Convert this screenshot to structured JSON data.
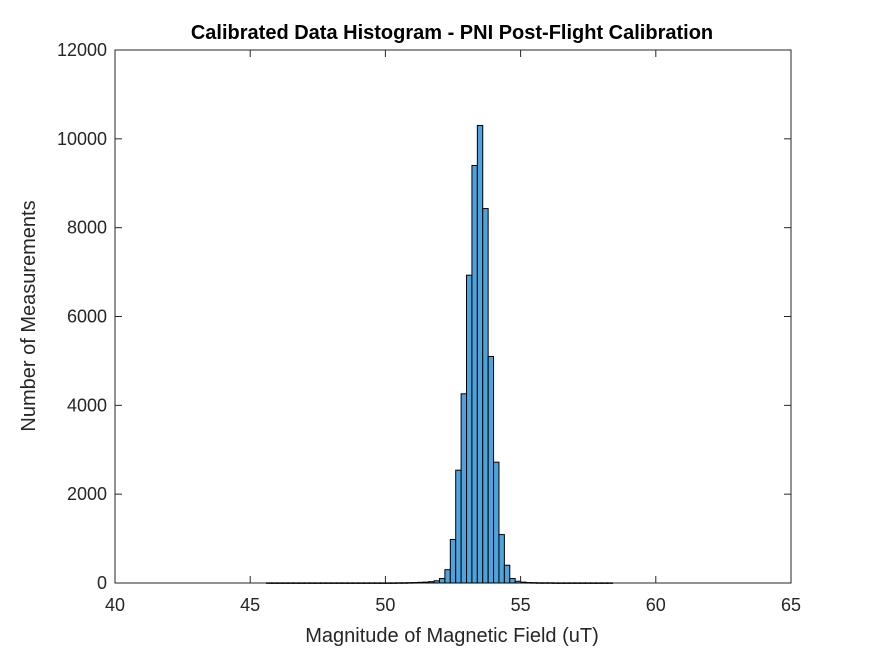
{
  "chart_data": {
    "type": "bar",
    "title": "Calibrated Data Histogram - PNI Post-Flight Calibration",
    "xlabel": "Magnitude of Magnetic Field (uT)",
    "ylabel": "Number of Measurements",
    "xlim": [
      40,
      65
    ],
    "ylim": [
      0,
      12000
    ],
    "xticks": [
      "40",
      "45",
      "50",
      "55",
      "60",
      "65"
    ],
    "yticks": [
      "0",
      "2000",
      "4000",
      "6000",
      "8000",
      "10000",
      "12000"
    ],
    "grid": false,
    "legend": "none",
    "bar_color": "#4DA3DB",
    "bin_width": 0.2,
    "bins": [
      {
        "x": 45.6,
        "y": 3
      },
      {
        "x": 45.8,
        "y": 3
      },
      {
        "x": 46.0,
        "y": 3
      },
      {
        "x": 46.2,
        "y": 3
      },
      {
        "x": 46.4,
        "y": 3
      },
      {
        "x": 46.6,
        "y": 3
      },
      {
        "x": 46.8,
        "y": 3
      },
      {
        "x": 47.0,
        "y": 3
      },
      {
        "x": 47.2,
        "y": 3
      },
      {
        "x": 47.4,
        "y": 3
      },
      {
        "x": 47.6,
        "y": 3
      },
      {
        "x": 47.8,
        "y": 3
      },
      {
        "x": 48.0,
        "y": 3
      },
      {
        "x": 48.2,
        "y": 3
      },
      {
        "x": 48.4,
        "y": 3
      },
      {
        "x": 48.6,
        "y": 3
      },
      {
        "x": 48.8,
        "y": 3
      },
      {
        "x": 49.0,
        "y": 3
      },
      {
        "x": 49.2,
        "y": 3
      },
      {
        "x": 49.4,
        "y": 3
      },
      {
        "x": 49.6,
        "y": 3
      },
      {
        "x": 49.8,
        "y": 3
      },
      {
        "x": 50.0,
        "y": 3
      },
      {
        "x": 50.2,
        "y": 3
      },
      {
        "x": 50.4,
        "y": 5
      },
      {
        "x": 50.6,
        "y": 5
      },
      {
        "x": 50.8,
        "y": 8
      },
      {
        "x": 51.0,
        "y": 10
      },
      {
        "x": 51.2,
        "y": 15
      },
      {
        "x": 51.4,
        "y": 20
      },
      {
        "x": 51.6,
        "y": 30
      },
      {
        "x": 51.8,
        "y": 50
      },
      {
        "x": 52.0,
        "y": 100
      },
      {
        "x": 52.2,
        "y": 300
      },
      {
        "x": 52.4,
        "y": 980
      },
      {
        "x": 52.6,
        "y": 2540
      },
      {
        "x": 52.8,
        "y": 4260
      },
      {
        "x": 53.0,
        "y": 6930
      },
      {
        "x": 53.2,
        "y": 9400
      },
      {
        "x": 53.4,
        "y": 10300
      },
      {
        "x": 53.6,
        "y": 8430
      },
      {
        "x": 53.8,
        "y": 5100
      },
      {
        "x": 54.0,
        "y": 2720
      },
      {
        "x": 54.2,
        "y": 1090
      },
      {
        "x": 54.4,
        "y": 400
      },
      {
        "x": 54.6,
        "y": 100
      },
      {
        "x": 54.8,
        "y": 40
      },
      {
        "x": 55.0,
        "y": 20
      },
      {
        "x": 55.2,
        "y": 10
      },
      {
        "x": 55.4,
        "y": 8
      },
      {
        "x": 55.6,
        "y": 5
      },
      {
        "x": 55.8,
        "y": 5
      },
      {
        "x": 56.0,
        "y": 5
      },
      {
        "x": 56.2,
        "y": 3
      },
      {
        "x": 56.4,
        "y": 3
      },
      {
        "x": 56.6,
        "y": 3
      },
      {
        "x": 56.8,
        "y": 3
      },
      {
        "x": 57.0,
        "y": 3
      },
      {
        "x": 57.2,
        "y": 3
      },
      {
        "x": 57.4,
        "y": 3
      },
      {
        "x": 57.6,
        "y": 3
      },
      {
        "x": 57.8,
        "y": 3
      },
      {
        "x": 58.0,
        "y": 3
      },
      {
        "x": 58.2,
        "y": 3
      }
    ]
  }
}
